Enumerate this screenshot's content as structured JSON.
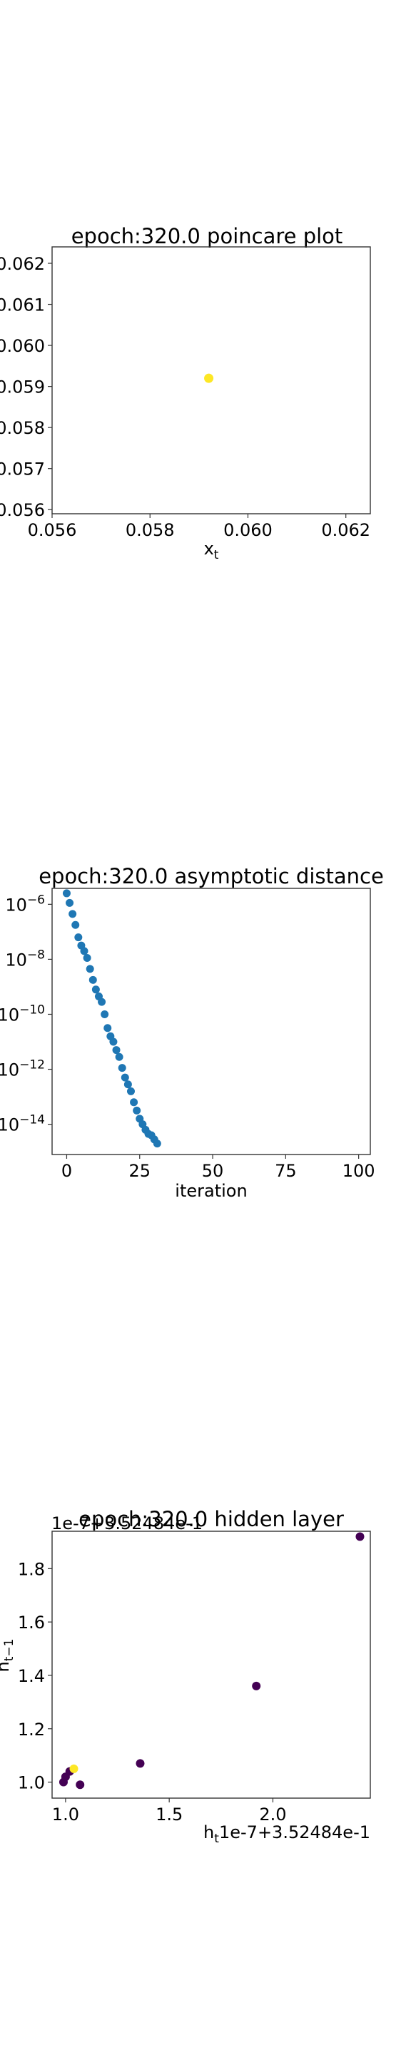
{
  "chart_data": [
    {
      "type": "scatter",
      "title": "epoch:320.0 poincare plot",
      "xlabel": "x_t",
      "ylabel": "",
      "xlim": [
        0.056,
        0.0625
      ],
      "ylim": [
        0.0559,
        0.0624
      ],
      "xticks": [
        "0.056",
        "0.058",
        "0.060",
        "0.062"
      ],
      "yticks": [
        "0.056",
        "0.057",
        "0.058",
        "0.059",
        "0.060",
        "0.061",
        "0.062"
      ],
      "points": [
        {
          "x": 0.0592,
          "y": 0.0592,
          "color": "#fde725"
        }
      ]
    },
    {
      "type": "scatter",
      "title": "epoch:320.0 asymptotic distance",
      "xlabel": "iteration",
      "ylabel": "",
      "yscale": "log",
      "xlim": [
        -5,
        104
      ],
      "ylim_exp": [
        -15.1,
        -5.42
      ],
      "xticks": [
        "0",
        "25",
        "50",
        "75",
        "100"
      ],
      "yticks": [
        "10^-6",
        "10^-8",
        "10^-10",
        "10^-12",
        "10^-14"
      ],
      "color": "#1f77b4",
      "x": [
        0,
        1,
        2,
        3,
        4,
        5,
        6,
        7,
        8,
        9,
        10,
        11,
        12,
        13,
        14,
        15,
        16,
        17,
        18,
        19,
        20,
        21,
        22,
        23,
        24,
        25,
        26,
        27,
        28,
        29,
        30,
        31
      ],
      "y_exp": [
        -5.6,
        -5.95,
        -6.35,
        -6.75,
        -7.2,
        -7.5,
        -7.7,
        -7.95,
        -8.35,
        -8.75,
        -9.1,
        -9.35,
        -9.55,
        -10.0,
        -10.5,
        -10.8,
        -11.0,
        -11.3,
        -11.55,
        -11.95,
        -12.3,
        -12.55,
        -12.8,
        -13.2,
        -13.5,
        -13.8,
        -14.0,
        -14.2,
        -14.35,
        -14.4,
        -14.55,
        -14.7
      ]
    },
    {
      "type": "scatter",
      "title": "epoch:320.0 hidden layer",
      "xlabel": "h_t",
      "ylabel": "h_{t-1}",
      "x_offset_text": "1e-7+3.52484e-1",
      "y_offset_text": "1e-7+3.52484e-1",
      "xlim": [
        0.935,
        2.47
      ],
      "ylim": [
        0.94,
        1.94
      ],
      "xticks": [
        "1.0",
        "1.5",
        "2.0"
      ],
      "yticks": [
        "1.0",
        "1.2",
        "1.4",
        "1.6",
        "1.8"
      ],
      "points": [
        {
          "x": 2.42,
          "y": 1.92,
          "color": "#440154"
        },
        {
          "x": 1.92,
          "y": 1.36,
          "color": "#440154"
        },
        {
          "x": 1.36,
          "y": 1.07,
          "color": "#440154"
        },
        {
          "x": 1.07,
          "y": 0.99,
          "color": "#440154"
        },
        {
          "x": 0.99,
          "y": 1.0,
          "color": "#440154"
        },
        {
          "x": 1.0,
          "y": 1.02,
          "color": "#440154"
        },
        {
          "x": 1.02,
          "y": 1.04,
          "color": "#440154"
        },
        {
          "x": 1.04,
          "y": 1.05,
          "color": "#fde725"
        }
      ]
    }
  ]
}
